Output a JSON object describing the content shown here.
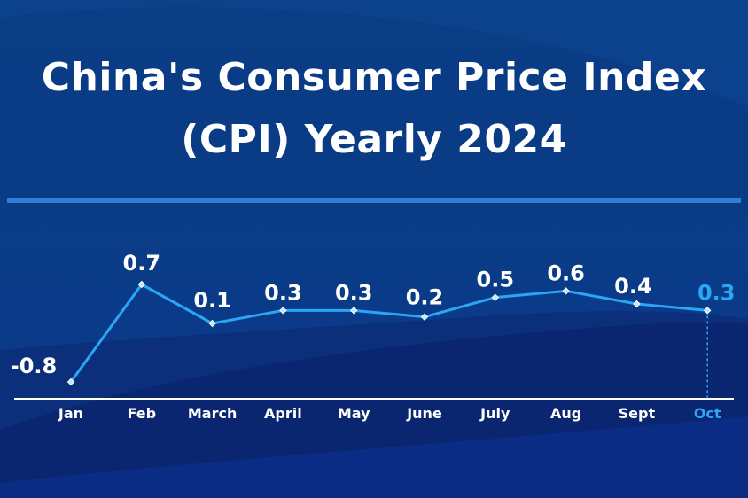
{
  "title_lines": [
    "China's Consumer Price Index",
    "(CPI) Yearly 2024"
  ],
  "colors": {
    "background": "#0c3f86",
    "line": "#2aa6f5",
    "text": "#ffffff",
    "highlight": "#2aa6f5",
    "divider": "#2f7fd6",
    "axis": "#ffffff"
  },
  "chart_data": {
    "type": "line",
    "title": "China's Consumer Price Index (CPI) Yearly 2024",
    "xlabel": "",
    "ylabel": "",
    "categories": [
      "Jan",
      "Feb",
      "March",
      "April",
      "May",
      "June",
      "July",
      "Aug",
      "Sept",
      "Oct"
    ],
    "series": [
      {
        "values": [
          -0.8,
          0.7,
          0.1,
          0.3,
          0.3,
          0.2,
          0.5,
          0.6,
          0.4,
          0.3
        ],
        "labels": [
          "-0.8",
          "0.7",
          "0.1",
          "0.3",
          "0.3",
          "0.2",
          "0.5",
          "0.6",
          "0.4",
          "0.3"
        ]
      }
    ],
    "ylim": [
      -0.8,
      0.7
    ],
    "highlight_category": "Oct",
    "grid": false,
    "legend": "none"
  }
}
